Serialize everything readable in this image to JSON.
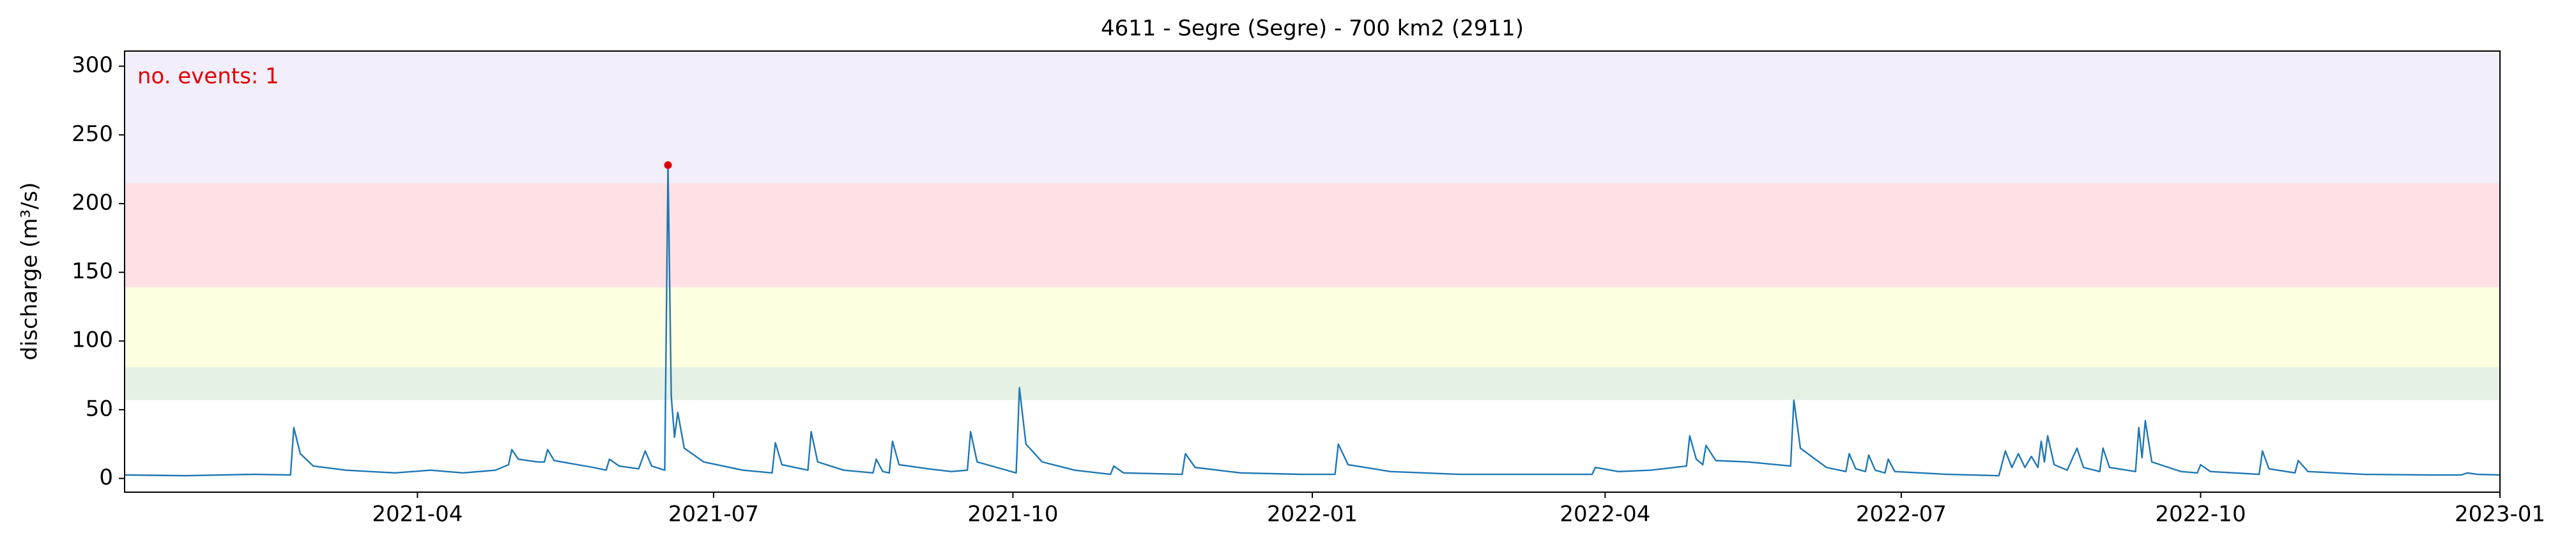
{
  "chart_data": {
    "type": "line",
    "title": "4611 - Segre (Segre) - 700 km2 (2911)",
    "ylabel": "discharge (m³/s)",
    "annotation": "no. events: 1",
    "annotation_color": "#e00000",
    "color": "#1f77b4",
    "xlim": [
      "2021-01-01",
      "2023-01-01"
    ],
    "xticks": [
      {
        "value": "2021-04-01",
        "label": "2021-04"
      },
      {
        "value": "2021-07-01",
        "label": "2021-07"
      },
      {
        "value": "2021-10-01",
        "label": "2021-10"
      },
      {
        "value": "2022-01-01",
        "label": "2022-01"
      },
      {
        "value": "2022-04-01",
        "label": "2022-04"
      },
      {
        "value": "2022-07-01",
        "label": "2022-07"
      },
      {
        "value": "2022-10-01",
        "label": "2022-10"
      },
      {
        "value": "2023-01-01",
        "label": "2023-01"
      }
    ],
    "ylim": [
      -10,
      311
    ],
    "yticks": [
      0,
      50,
      100,
      150,
      200,
      250,
      300
    ],
    "bands": [
      {
        "from": 57,
        "to": 81,
        "color": "#e6f1e6"
      },
      {
        "from": 81,
        "to": 139,
        "color": "#ffffe2"
      },
      {
        "from": 139,
        "to": 215,
        "color": "#ffe1e5"
      },
      {
        "from": 215,
        "to": 311,
        "color": "#f2eefa"
      }
    ],
    "events": [
      {
        "x": "2021-06-17",
        "value": 228,
        "color": "#e00000"
      }
    ],
    "x": [
      "2021-01-01",
      "2021-01-20",
      "2021-02-10",
      "2021-02-21",
      "2021-02-22",
      "2021-02-24",
      "2021-02-28",
      "2021-03-10",
      "2021-03-25",
      "2021-04-05",
      "2021-04-15",
      "2021-04-25",
      "2021-04-29",
      "2021-04-30",
      "2021-05-02",
      "2021-05-08",
      "2021-05-10",
      "2021-05-11",
      "2021-05-13",
      "2021-05-25",
      "2021-05-29",
      "2021-05-30",
      "2021-06-02",
      "2021-06-08",
      "2021-06-10",
      "2021-06-12",
      "2021-06-16",
      "2021-06-17",
      "2021-06-18",
      "2021-06-19",
      "2021-06-20",
      "2021-06-22",
      "2021-06-28",
      "2021-07-10",
      "2021-07-19",
      "2021-07-20",
      "2021-07-22",
      "2021-07-30",
      "2021-07-31",
      "2021-08-02",
      "2021-08-10",
      "2021-08-19",
      "2021-08-20",
      "2021-08-22",
      "2021-08-24",
      "2021-08-25",
      "2021-08-27",
      "2021-09-05",
      "2021-09-12",
      "2021-09-17",
      "2021-09-18",
      "2021-09-20",
      "2021-10-02",
      "2021-10-03",
      "2021-10-05",
      "2021-10-10",
      "2021-10-20",
      "2021-10-31",
      "2021-11-01",
      "2021-11-04",
      "2021-11-22",
      "2021-11-23",
      "2021-11-26",
      "2021-12-10",
      "2021-12-28",
      "2022-01-08",
      "2022-01-09",
      "2022-01-12",
      "2022-01-25",
      "2022-02-15",
      "2022-03-10",
      "2022-03-28",
      "2022-03-29",
      "2022-04-05",
      "2022-04-15",
      "2022-04-26",
      "2022-04-27",
      "2022-04-29",
      "2022-05-01",
      "2022-05-02",
      "2022-05-05",
      "2022-05-15",
      "2022-05-28",
      "2022-05-29",
      "2022-05-31",
      "2022-06-08",
      "2022-06-14",
      "2022-06-15",
      "2022-06-17",
      "2022-06-20",
      "2022-06-21",
      "2022-06-23",
      "2022-06-26",
      "2022-06-27",
      "2022-06-29",
      "2022-07-15",
      "2022-07-31",
      "2022-08-02",
      "2022-08-04",
      "2022-08-06",
      "2022-08-08",
      "2022-08-10",
      "2022-08-12",
      "2022-08-13",
      "2022-08-14",
      "2022-08-15",
      "2022-08-17",
      "2022-08-21",
      "2022-08-24",
      "2022-08-26",
      "2022-08-31",
      "2022-09-01",
      "2022-09-03",
      "2022-09-11",
      "2022-09-12",
      "2022-09-13",
      "2022-09-14",
      "2022-09-16",
      "2022-09-25",
      "2022-09-30",
      "2022-10-01",
      "2022-10-04",
      "2022-10-19",
      "2022-10-20",
      "2022-10-22",
      "2022-10-30",
      "2022-10-31",
      "2022-11-03",
      "2022-11-20",
      "2022-12-10",
      "2022-12-20",
      "2022-12-22",
      "2022-12-25",
      "2023-01-01"
    ],
    "values": [
      2.5,
      2,
      3,
      2.5,
      37,
      18,
      9,
      6,
      4,
      6,
      4,
      6,
      10,
      21,
      14,
      12,
      12,
      21,
      13,
      8,
      6,
      14,
      9,
      7,
      20,
      9,
      6,
      228,
      60,
      30,
      48,
      22,
      12,
      6,
      4,
      26,
      10,
      6,
      34,
      12,
      6,
      4,
      14,
      5,
      4,
      27,
      10,
      7,
      5,
      6,
      34,
      12,
      4,
      66,
      25,
      12,
      6,
      3,
      9,
      4,
      3,
      18,
      8,
      4,
      3,
      3,
      25,
      10,
      5,
      3,
      3,
      3,
      8,
      5,
      6,
      9,
      31,
      14,
      10,
      24,
      13,
      12,
      9,
      57,
      22,
      8,
      5,
      18,
      7,
      5,
      17,
      6,
      4,
      14,
      5,
      3,
      2,
      20,
      8,
      18,
      8,
      16,
      8,
      27,
      12,
      31,
      10,
      6,
      22,
      8,
      5,
      22,
      8,
      5,
      37,
      15,
      42,
      12,
      5,
      4,
      10,
      5,
      3,
      20,
      7,
      4,
      13,
      5,
      3,
      2.5,
      2.5,
      4,
      3,
      2.5
    ]
  }
}
